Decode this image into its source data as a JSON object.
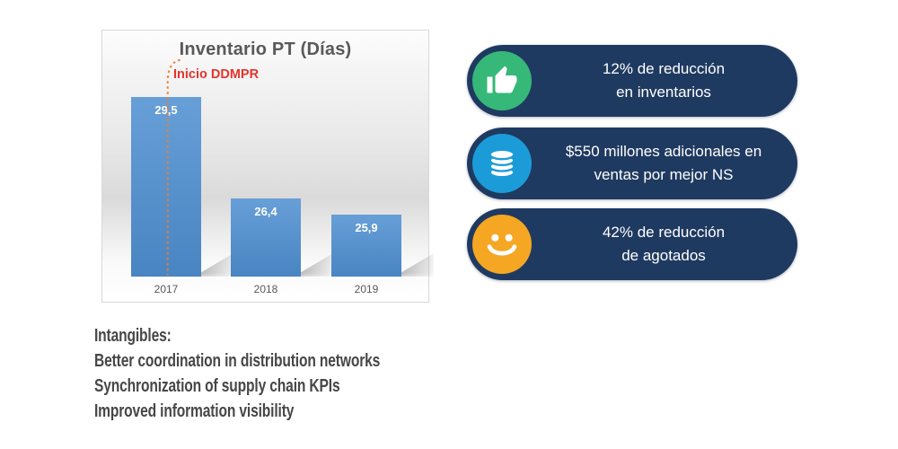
{
  "chart_data": {
    "type": "bar",
    "title": "Inventario PT (Días)",
    "categories": [
      "2017",
      "2018",
      "2019"
    ],
    "values": [
      29.5,
      26.4,
      25.9
    ],
    "data_labels": [
      "29,5",
      "26,4",
      "25,9"
    ],
    "ylim": [
      24,
      30
    ],
    "grid": false,
    "legend": false,
    "bar_color": "#4e8fd1",
    "xlabel": "",
    "ylabel": "",
    "annotation": {
      "label": "Inicio DDMPR",
      "target_category": "2017",
      "style": "dashed-vertical-line",
      "label_color": "#e5352b",
      "line_color": "#ed7d31"
    }
  },
  "badges": [
    {
      "icon": "thumbs-up-icon",
      "icon_bg": "#36b878",
      "lines": [
        "12% de reducción",
        "en inventarios"
      ]
    },
    {
      "icon": "coins-icon",
      "icon_bg": "#1b9cd8",
      "lines": [
        "$550 millones adicionales en",
        "ventas por mejor NS"
      ]
    },
    {
      "icon": "smiley-icon",
      "icon_bg": "#f5a623",
      "lines": [
        "42% de reducción",
        "de agotados"
      ]
    }
  ],
  "badge_style": {
    "background": "#1f3a60",
    "text_color": "#ffffff"
  },
  "intangibles": {
    "heading": "Intangibles:",
    "items": [
      "Better coordination in distribution networks",
      "Synchronization of supply chain KPIs",
      "Improved information visibility"
    ]
  }
}
